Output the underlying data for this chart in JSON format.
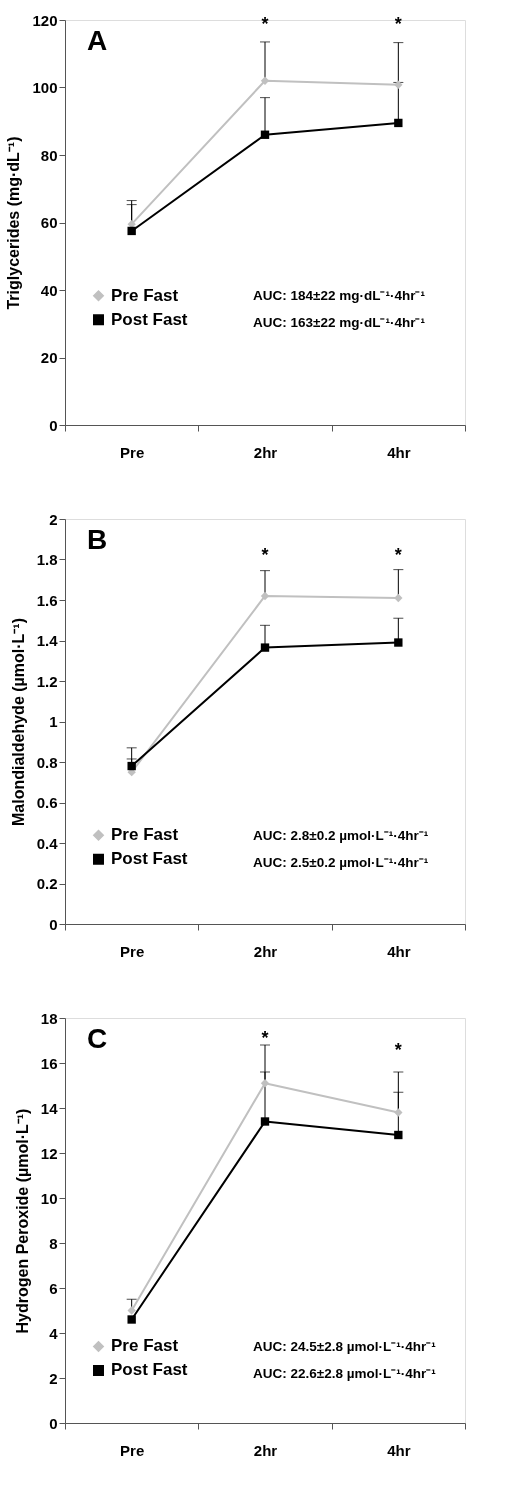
{
  "chart_data": [
    {
      "type": "line",
      "title": "A",
      "categories": [
        "Pre",
        "2hr",
        "4hr"
      ],
      "ylabel": "Triglycerides (mg·dL⁻¹)",
      "ylim": [
        0,
        120
      ],
      "yticks": [
        0,
        20,
        40,
        60,
        80,
        100,
        120
      ],
      "grid": false,
      "legend": "bottom left",
      "line_style": "solid",
      "series": [
        {
          "name": "Pre Fast",
          "color": "#c0c0c0",
          "marker": "diamond",
          "values": [
            59.5,
            102,
            100.8
          ],
          "errors": [
            [
              59.5,
              66.5
            ],
            [
              102,
              113.5
            ],
            [
              100.8,
              113.3
            ]
          ]
        },
        {
          "name": "Post Fast",
          "color": "#000000",
          "marker": "square",
          "values": [
            57.5,
            86,
            89.5
          ],
          "errors": [
            [
              57.5,
              65.3
            ],
            [
              86,
              97
            ],
            [
              89.5,
              101.5
            ]
          ]
        }
      ],
      "annotations": [
        "*",
        "*",
        "AUC: 184±22 mg·dL⁻¹·4hr⁻¹",
        "AUC: 163±22 mg·dL⁻¹·4hr⁻¹"
      ]
    },
    {
      "type": "line",
      "title": "B",
      "categories": [
        "Pre",
        "2hr",
        "4hr"
      ],
      "ylabel": "Malondialdehyde (µmol·L⁻¹)",
      "ylim": [
        0,
        2
      ],
      "yticks": [
        0,
        0.2,
        0.4,
        0.6,
        0.8,
        1,
        1.2,
        1.4,
        1.6,
        1.8,
        2
      ],
      "grid": false,
      "legend": "bottom left",
      "line_style": "solid",
      "series": [
        {
          "name": "Pre Fast",
          "color": "#c0c0c0",
          "marker": "diamond",
          "values": [
            0.75,
            1.62,
            1.61
          ],
          "errors": [
            [
              0.75,
              0.87
            ],
            [
              1.62,
              1.745
            ],
            [
              1.61,
              1.75
            ]
          ]
        },
        {
          "name": "Post Fast",
          "color": "#000000",
          "marker": "square",
          "values": [
            0.78,
            1.365,
            1.39
          ],
          "errors": [
            [
              0.78,
              0.815
            ],
            [
              1.365,
              1.475
            ],
            [
              1.39,
              1.51
            ]
          ]
        }
      ],
      "annotations": [
        "*",
        "*",
        "AUC: 2.8±0.2 µmol·L⁻¹·4hr⁻¹",
        "AUC: 2.5±0.2 µmol·L⁻¹·4hr⁻¹"
      ]
    },
    {
      "type": "line",
      "title": "C",
      "categories": [
        "Pre",
        "2hr",
        "4hr"
      ],
      "ylabel": "Hydrogen Peroxide (µmol·L⁻¹)",
      "ylim": [
        0,
        18
      ],
      "yticks": [
        0,
        2,
        4,
        6,
        8,
        10,
        12,
        14,
        16,
        18
      ],
      "grid": false,
      "legend": "bottom left",
      "line_style": "solid",
      "series": [
        {
          "name": "Pre Fast",
          "color": "#c0c0c0",
          "marker": "diamond",
          "values": [
            5.0,
            15.1,
            13.8
          ],
          "errors": [
            [
              5.0,
              5.5
            ],
            [
              15.1,
              16.8
            ],
            [
              13.8,
              15.6
            ]
          ]
        },
        {
          "name": "Post Fast",
          "color": "#000000",
          "marker": "square",
          "values": [
            4.6,
            13.4,
            12.8
          ],
          "errors": [
            null,
            [
              13.4,
              15.6
            ],
            [
              12.8,
              14.7
            ]
          ]
        }
      ],
      "annotations": [
        "*",
        "*",
        "AUC: 24.5±2.8 µmol·L⁻¹·4hr⁻¹",
        "AUC: 22.6±2.8 µmol·L⁻¹·4hr⁻¹"
      ]
    }
  ]
}
